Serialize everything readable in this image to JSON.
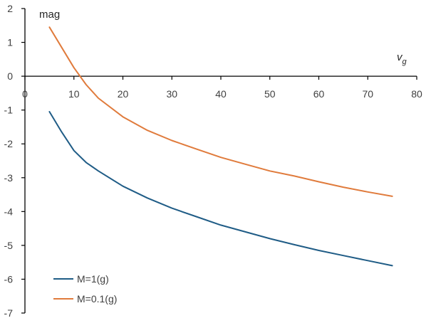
{
  "chart_data": {
    "type": "line",
    "title": "",
    "xlabel_main": "v",
    "xlabel_sub": "g",
    "ylabel": "mag",
    "xlim": [
      0,
      80
    ],
    "ylim": [
      -7,
      2
    ],
    "x_ticks": [
      "0",
      "10",
      "20",
      "30",
      "40",
      "50",
      "60",
      "70",
      "80"
    ],
    "y_ticks": [
      "2",
      "1",
      "0",
      "-1",
      "-2",
      "-3",
      "-4",
      "-5",
      "-6",
      "-7"
    ],
    "grid": false,
    "legend_position": "bottom-left",
    "series": [
      {
        "name": "M=1(g)",
        "color": "#1f5c86",
        "x": [
          5,
          7.5,
          10,
          12.5,
          15,
          20,
          25,
          30,
          35,
          40,
          45,
          50,
          55,
          60,
          65,
          70,
          75
        ],
        "y": [
          -1.05,
          -1.65,
          -2.2,
          -2.55,
          -2.8,
          -3.25,
          -3.6,
          -3.9,
          -4.15,
          -4.4,
          -4.6,
          -4.8,
          -4.98,
          -5.15,
          -5.3,
          -5.45,
          -5.6
        ]
      },
      {
        "name": "M=0.1(g)",
        "color": "#e07b3c",
        "x": [
          5,
          7.5,
          10,
          12.5,
          15,
          20,
          25,
          30,
          35,
          40,
          45,
          50,
          55,
          60,
          65,
          70,
          75
        ],
        "y": [
          1.45,
          0.85,
          0.25,
          -0.25,
          -0.65,
          -1.2,
          -1.6,
          -1.9,
          -2.15,
          -2.4,
          -2.6,
          -2.8,
          -2.95,
          -3.12,
          -3.28,
          -3.42,
          -3.55
        ]
      }
    ]
  }
}
